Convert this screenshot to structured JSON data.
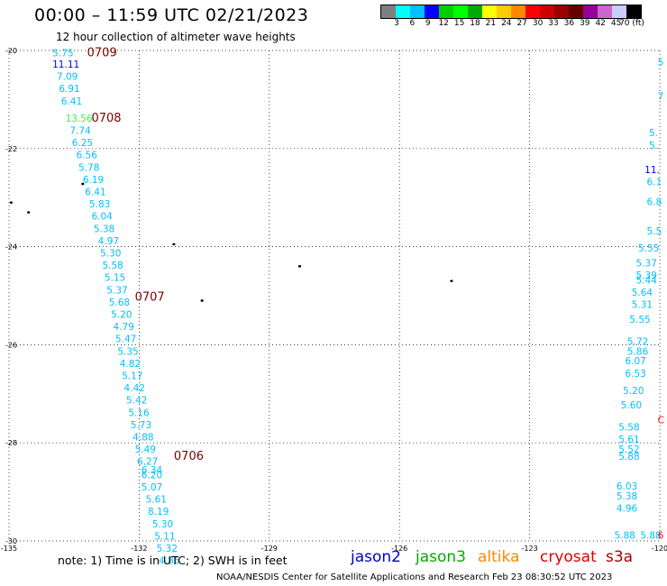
{
  "header": {
    "title": "00:00 – 11:59 UTC 02/21/2023",
    "subtitle": "12 hour collection of altimeter wave heights"
  },
  "colorbar": {
    "colors": [
      "#7f7f7f",
      "#00ffff",
      "#00bfff",
      "#0000ff",
      "#00d000",
      "#00ff00",
      "#00aa00",
      "#ffff00",
      "#ffcc00",
      "#ff8800",
      "#ff0000",
      "#cc0000",
      "#990000",
      "#660000",
      "#990099",
      "#cc66cc",
      "#ccccff",
      "#000000"
    ],
    "labels": [
      "3",
      "6",
      "9",
      "12",
      "15",
      "18",
      "21",
      "24",
      "27",
      "30",
      "33",
      "36",
      "39",
      "42",
      "45",
      "70 (ft)"
    ]
  },
  "map": {
    "lon_ticks": [
      "-135",
      "-132",
      "-129",
      "-126",
      "-123",
      "-120"
    ],
    "lat_ticks": [
      "-20",
      "-22",
      "-24",
      "-26",
      "-28",
      "-30"
    ],
    "lon_range": [
      -135,
      -120
    ],
    "lat_range": [
      -30,
      -20
    ],
    "grid": "dotted"
  },
  "passes": [
    {
      "label": "0709",
      "lon": -133.2,
      "lat": -20.12
    },
    {
      "label": "0708",
      "lon": -133.1,
      "lat": -21.45
    },
    {
      "label": "0707",
      "lon": -132.1,
      "lat": -25.1
    },
    {
      "label": "0706",
      "lon": -131.2,
      "lat": -28.35
    }
  ],
  "observations": [
    {
      "v": "5.75",
      "lon": -134.0,
      "lat": -20.12,
      "c": "#00bfff"
    },
    {
      "v": "11.11",
      "lon": -134.0,
      "lat": -20.35,
      "c": "#0000ff"
    },
    {
      "v": "7.09",
      "lon": -133.9,
      "lat": -20.6,
      "c": "#00bfff"
    },
    {
      "v": "6.91",
      "lon": -133.85,
      "lat": -20.85,
      "c": "#00bfff"
    },
    {
      "v": "6.41",
      "lon": -133.8,
      "lat": -21.1,
      "c": "#00bfff"
    },
    {
      "v": "13.56",
      "lon": -133.7,
      "lat": -21.45,
      "c": "#44ee44"
    },
    {
      "v": "7.74",
      "lon": -133.6,
      "lat": -21.7,
      "c": "#00bfff"
    },
    {
      "v": "6.25",
      "lon": -133.55,
      "lat": -21.95,
      "c": "#00bfff"
    },
    {
      "v": "6.56",
      "lon": -133.45,
      "lat": -22.2,
      "c": "#00bfff"
    },
    {
      "v": "5.78",
      "lon": -133.4,
      "lat": -22.45,
      "c": "#00bfff"
    },
    {
      "v": "6.19",
      "lon": -133.3,
      "lat": -22.7,
      "c": "#00bfff"
    },
    {
      "v": "6.41",
      "lon": -133.25,
      "lat": -22.95,
      "c": "#00bfff"
    },
    {
      "v": "5.83",
      "lon": -133.15,
      "lat": -23.2,
      "c": "#00bfff"
    },
    {
      "v": "6.04",
      "lon": -133.1,
      "lat": -23.45,
      "c": "#00bfff"
    },
    {
      "v": "5.38",
      "lon": -133.05,
      "lat": -23.7,
      "c": "#00bfff"
    },
    {
      "v": "4.97",
      "lon": -132.95,
      "lat": -23.95,
      "c": "#00bfff"
    },
    {
      "v": "5.30",
      "lon": -132.9,
      "lat": -24.2,
      "c": "#00bfff"
    },
    {
      "v": "5.58",
      "lon": -132.85,
      "lat": -24.45,
      "c": "#00bfff"
    },
    {
      "v": "5.15",
      "lon": -132.8,
      "lat": -24.7,
      "c": "#00bfff"
    },
    {
      "v": "5.37",
      "lon": -132.75,
      "lat": -24.95,
      "c": "#00bfff"
    },
    {
      "v": "5.68",
      "lon": -132.7,
      "lat": -25.2,
      "c": "#00bfff"
    },
    {
      "v": "5.20",
      "lon": -132.65,
      "lat": -25.45,
      "c": "#00bfff"
    },
    {
      "v": "4.79",
      "lon": -132.6,
      "lat": -25.7,
      "c": "#00bfff"
    },
    {
      "v": "5.47",
      "lon": -132.55,
      "lat": -25.95,
      "c": "#00bfff"
    },
    {
      "v": "5.35",
      "lon": -132.5,
      "lat": -26.2,
      "c": "#00bfff"
    },
    {
      "v": "4.82",
      "lon": -132.45,
      "lat": -26.45,
      "c": "#00bfff"
    },
    {
      "v": "5.17",
      "lon": -132.4,
      "lat": -26.7,
      "c": "#00bfff"
    },
    {
      "v": "4.42",
      "lon": -132.35,
      "lat": -26.95,
      "c": "#00bfff"
    },
    {
      "v": "5.42",
      "lon": -132.3,
      "lat": -27.2,
      "c": "#00bfff"
    },
    {
      "v": "5.16",
      "lon": -132.25,
      "lat": -27.45,
      "c": "#00bfff"
    },
    {
      "v": "5.73",
      "lon": -132.2,
      "lat": -27.7,
      "c": "#00bfff"
    },
    {
      "v": "4.88",
      "lon": -132.15,
      "lat": -27.95,
      "c": "#00bfff"
    },
    {
      "v": "5.49",
      "lon": -132.1,
      "lat": -28.2,
      "c": "#00bfff"
    },
    {
      "v": "6.27",
      "lon": -132.05,
      "lat": -28.45,
      "c": "#00bfff"
    },
    {
      "v": "6.34",
      "lon": -131.95,
      "lat": -28.62,
      "c": "#00bfff"
    },
    {
      "v": "6.20",
      "lon": -131.95,
      "lat": -28.72,
      "c": "#00bfff"
    },
    {
      "v": "5.07",
      "lon": -131.95,
      "lat": -28.97,
      "c": "#00bfff"
    },
    {
      "v": "5.61",
      "lon": -131.85,
      "lat": -29.22,
      "c": "#00bfff"
    },
    {
      "v": "8.19",
      "lon": -131.8,
      "lat": -29.47,
      "c": "#00bfff"
    },
    {
      "v": "5.30",
      "lon": -131.7,
      "lat": -29.72,
      "c": "#00bfff"
    },
    {
      "v": "5.11",
      "lon": -131.65,
      "lat": -29.97,
      "c": "#00bfff"
    },
    {
      "v": "5.32",
      "lon": -131.6,
      "lat": -30.22,
      "c": "#00bfff"
    },
    {
      "v": "4.86",
      "lon": -131.55,
      "lat": -30.47,
      "c": "#00bfff"
    },
    {
      "v": "5",
      "lon": -120.05,
      "lat": -20.3,
      "c": "#00bfff"
    },
    {
      "v": "7",
      "lon": -120.05,
      "lat": -21.0,
      "c": "#00bfff"
    },
    {
      "v": "5.",
      "lon": -120.25,
      "lat": -21.75,
      "c": "#00bfff"
    },
    {
      "v": "5.",
      "lon": -120.25,
      "lat": -22.0,
      "c": "#00bfff"
    },
    {
      "v": "11.",
      "lon": -120.35,
      "lat": -22.5,
      "c": "#0000ff"
    },
    {
      "v": "6.1",
      "lon": -120.3,
      "lat": -22.75,
      "c": "#00bfff"
    },
    {
      "v": "6.8",
      "lon": -120.3,
      "lat": -23.15,
      "c": "#00bfff"
    },
    {
      "v": "5.5",
      "lon": -120.3,
      "lat": -23.75,
      "c": "#00bfff"
    },
    {
      "v": "5.55",
      "lon": -120.5,
      "lat": -24.1,
      "c": "#00bfff"
    },
    {
      "v": "5.37",
      "lon": -120.55,
      "lat": -24.4,
      "c": "#00bfff"
    },
    {
      "v": "5.39",
      "lon": -120.55,
      "lat": -24.65,
      "c": "#00bfff"
    },
    {
      "v": "5.44",
      "lon": -120.55,
      "lat": -24.75,
      "c": "#00bfff"
    },
    {
      "v": "5.64",
      "lon": -120.65,
      "lat": -25.0,
      "c": "#00bfff"
    },
    {
      "v": "5.31",
      "lon": -120.65,
      "lat": -25.25,
      "c": "#00bfff"
    },
    {
      "v": "5.55",
      "lon": -120.7,
      "lat": -25.55,
      "c": "#00bfff"
    },
    {
      "v": "5.72",
      "lon": -120.75,
      "lat": -26.0,
      "c": "#00bfff"
    },
    {
      "v": "5.86",
      "lon": -120.75,
      "lat": -26.2,
      "c": "#00bfff"
    },
    {
      "v": "6.07",
      "lon": -120.8,
      "lat": -26.4,
      "c": "#00bfff"
    },
    {
      "v": "6.53",
      "lon": -120.8,
      "lat": -26.65,
      "c": "#00bfff"
    },
    {
      "v": "5.20",
      "lon": -120.85,
      "lat": -27.0,
      "c": "#00bfff"
    },
    {
      "v": "5.60",
      "lon": -120.9,
      "lat": -27.3,
      "c": "#00bfff"
    },
    {
      "v": "5.58",
      "lon": -120.95,
      "lat": -27.75,
      "c": "#00bfff"
    },
    {
      "v": "5.61",
      "lon": -120.95,
      "lat": -28.0,
      "c": "#00bfff"
    },
    {
      "v": "5.52",
      "lon": -120.95,
      "lat": -28.2,
      "c": "#00bfff"
    },
    {
      "v": "5.88",
      "lon": -120.95,
      "lat": -28.35,
      "c": "#00bfff"
    },
    {
      "v": "6.03",
      "lon": -121.0,
      "lat": -28.95,
      "c": "#00bfff"
    },
    {
      "v": "5.38",
      "lon": -121.0,
      "lat": -29.15,
      "c": "#00bfff"
    },
    {
      "v": "4.96",
      "lon": -121.0,
      "lat": -29.4,
      "c": "#00bfff"
    },
    {
      "v": "5.88",
      "lon": -121.05,
      "lat": -29.95,
      "c": "#00bfff"
    },
    {
      "v": "5.88",
      "lon": -120.45,
      "lat": -29.95,
      "c": "#00bfff"
    },
    {
      "v": "6",
      "lon": -120.05,
      "lat": -29.95,
      "c": "#ff0000"
    },
    {
      "v": "C",
      "lon": -120.05,
      "lat": -27.6,
      "c": "#ff0000"
    }
  ],
  "islands": [
    {
      "lon": -134.95,
      "lat": -23.1
    },
    {
      "lon": -134.55,
      "lat": -23.3
    },
    {
      "lon": -133.3,
      "lat": -22.72
    },
    {
      "lon": -131.2,
      "lat": -23.95
    },
    {
      "lon": -130.55,
      "lat": -25.1
    },
    {
      "lon": -128.3,
      "lat": -24.4
    },
    {
      "lon": -124.8,
      "lat": -24.7
    }
  ],
  "footer": {
    "note": "note:  1) Time is in UTC;  2) SWH is in feet",
    "satellites": [
      {
        "name": "jason2",
        "color": "#0000cc"
      },
      {
        "name": "jason3",
        "color": "#00aa00"
      },
      {
        "name": "altika",
        "color": "#ff8800"
      },
      {
        "name": "cryosat",
        "color": "#dd0000"
      },
      {
        "name": "s3a",
        "color": "#aa0000"
      }
    ],
    "credit": "NOAA/NESDIS Center for Satellite Applications and Research    Feb 23 08:30:52 UTC 2023"
  }
}
